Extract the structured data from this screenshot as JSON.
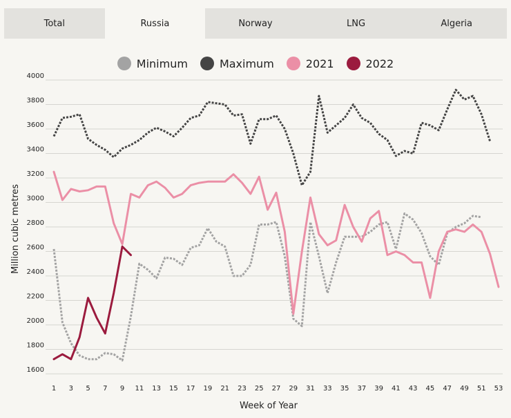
{
  "tabs": [
    {
      "label": "Total",
      "active": false
    },
    {
      "label": "Russia",
      "active": true
    },
    {
      "label": "Norway",
      "active": false
    },
    {
      "label": "LNG",
      "active": false
    },
    {
      "label": "Algeria",
      "active": false
    }
  ],
  "colors": {
    "minimum": "#a3a3a3",
    "maximum": "#444444",
    "y2021": "#eb8fa6",
    "y2022": "#9b1b3e",
    "grid": "#d6d5d0",
    "tab_bg": "#e3e2de",
    "background": "#f7f6f2"
  },
  "chart_data": {
    "type": "line",
    "xlabel": "Week of Year",
    "ylabel": "Million cubic metres",
    "xlim": [
      1,
      53
    ],
    "ylim": [
      1600,
      4000
    ],
    "x_ticks": [
      1,
      3,
      5,
      7,
      9,
      11,
      13,
      15,
      17,
      19,
      21,
      23,
      25,
      27,
      29,
      31,
      33,
      35,
      37,
      39,
      41,
      43,
      45,
      47,
      49,
      51,
      53
    ],
    "y_ticks": [
      1600,
      1800,
      2000,
      2200,
      2400,
      2600,
      2800,
      3000,
      3200,
      3400,
      3600,
      3800,
      4000
    ],
    "legend_position": "top-center",
    "grid": "horizontal",
    "series": [
      {
        "name": "Minimum",
        "style": "dotted",
        "color_key": "minimum",
        "x": [
          1,
          2,
          3,
          4,
          5,
          6,
          7,
          8,
          9,
          10,
          11,
          12,
          13,
          14,
          15,
          16,
          17,
          18,
          19,
          20,
          21,
          22,
          23,
          24,
          25,
          26,
          27,
          28,
          29,
          30,
          31,
          32,
          33,
          34,
          35,
          36,
          37,
          38,
          39,
          40,
          41,
          42,
          43,
          44,
          45,
          46,
          47,
          48,
          49,
          50,
          51
        ],
        "values": [
          2620,
          2020,
          1850,
          1750,
          1720,
          1720,
          1770,
          1760,
          1710,
          2070,
          2500,
          2450,
          2380,
          2550,
          2540,
          2490,
          2630,
          2650,
          2790,
          2680,
          2640,
          2400,
          2400,
          2490,
          2820,
          2820,
          2840,
          2560,
          2050,
          1990,
          2840,
          2560,
          2260,
          2510,
          2720,
          2720,
          2720,
          2760,
          2820,
          2840,
          2620,
          2910,
          2860,
          2750,
          2560,
          2490,
          2750,
          2800,
          2830,
          2890,
          2880
        ]
      },
      {
        "name": "Maximum",
        "style": "dotted",
        "color_key": "maximum",
        "x": [
          1,
          2,
          3,
          4,
          5,
          6,
          7,
          8,
          9,
          10,
          11,
          12,
          13,
          14,
          15,
          16,
          17,
          18,
          19,
          20,
          21,
          22,
          23,
          24,
          25,
          26,
          27,
          28,
          29,
          30,
          31,
          32,
          33,
          34,
          35,
          36,
          37,
          38,
          39,
          40,
          41,
          42,
          43,
          44,
          45,
          46,
          47,
          48,
          49,
          50,
          51,
          52
        ],
        "values": [
          3540,
          3690,
          3700,
          3720,
          3520,
          3470,
          3430,
          3370,
          3440,
          3470,
          3510,
          3570,
          3610,
          3580,
          3540,
          3610,
          3690,
          3710,
          3820,
          3810,
          3800,
          3710,
          3720,
          3480,
          3680,
          3680,
          3710,
          3600,
          3400,
          3140,
          3250,
          3870,
          3570,
          3630,
          3690,
          3800,
          3690,
          3650,
          3560,
          3510,
          3380,
          3420,
          3400,
          3650,
          3630,
          3590,
          3760,
          3920,
          3840,
          3870,
          3720,
          3500
        ]
      },
      {
        "name": "2021",
        "style": "solid",
        "color_key": "y2021",
        "x": [
          1,
          2,
          3,
          4,
          5,
          6,
          7,
          8,
          9,
          10,
          11,
          12,
          13,
          14,
          15,
          16,
          17,
          18,
          19,
          20,
          21,
          22,
          23,
          24,
          25,
          26,
          27,
          28,
          29,
          30,
          31,
          32,
          33,
          34,
          35,
          36,
          37,
          38,
          39,
          40,
          41,
          42,
          43,
          44,
          45,
          46,
          47,
          48,
          49,
          50,
          51,
          52,
          53
        ],
        "values": [
          3250,
          3020,
          3110,
          3090,
          3100,
          3130,
          3130,
          2830,
          2660,
          3070,
          3040,
          3140,
          3170,
          3120,
          3040,
          3070,
          3140,
          3160,
          3170,
          3170,
          3170,
          3230,
          3160,
          3070,
          3210,
          2940,
          3080,
          2760,
          2090,
          2600,
          3040,
          2740,
          2650,
          2690,
          2980,
          2800,
          2680,
          2870,
          2930,
          2570,
          2600,
          2570,
          2510,
          2510,
          2220,
          2600,
          2760,
          2780,
          2760,
          2820,
          2760,
          2580,
          2310
        ]
      },
      {
        "name": "2022",
        "style": "solid",
        "color_key": "y2022",
        "x": [
          1,
          2,
          3,
          4,
          5,
          6,
          7,
          8,
          9,
          10
        ],
        "values": [
          1720,
          1760,
          1720,
          1900,
          2220,
          2060,
          1930,
          2260,
          2640,
          2570
        ]
      }
    ]
  }
}
